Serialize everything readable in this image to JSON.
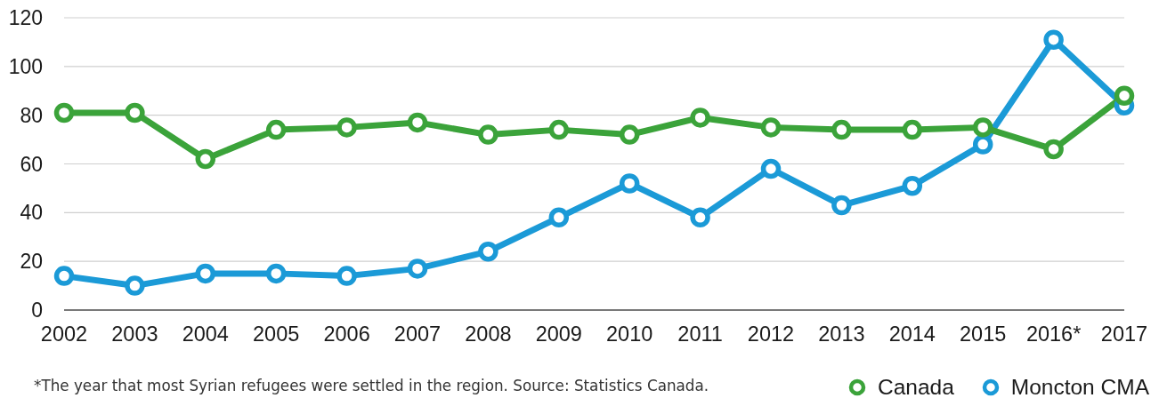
{
  "chart_data": {
    "type": "line",
    "categories": [
      "2002",
      "2003",
      "2004",
      "2005",
      "2006",
      "2007",
      "2008",
      "2009",
      "2010",
      "2011",
      "2012",
      "2013",
      "2014",
      "2015",
      "2016*",
      "2017"
    ],
    "series": [
      {
        "name": "Canada",
        "color": "#3ba33a",
        "values": [
          81,
          81,
          62,
          74,
          75,
          77,
          72,
          74,
          72,
          79,
          75,
          74,
          74,
          75,
          66,
          88
        ]
      },
      {
        "name": "Moncton CMA",
        "color": "#1b9ad7",
        "values": [
          14,
          10,
          15,
          15,
          14,
          17,
          24,
          38,
          52,
          38,
          58,
          43,
          51,
          68,
          111,
          84
        ]
      }
    ],
    "ylim": [
      0,
      120
    ],
    "yticks": [
      0,
      20,
      40,
      60,
      80,
      100,
      120
    ],
    "grid": "y",
    "legend": "bottom right",
    "marker": "circle",
    "annotations": [
      "*The year that most Syrian refugees were settled in the region. Source: Statistics Canada."
    ]
  }
}
